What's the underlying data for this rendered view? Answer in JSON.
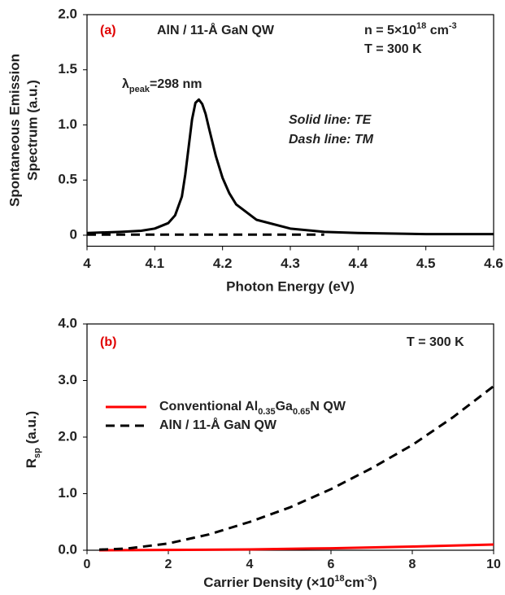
{
  "chart_data": [
    {
      "type": "line",
      "panel_label": "(a)",
      "title": "AlN / 11-Å GaN QW",
      "annotations": {
        "density": [
          "n = 5×10",
          "18",
          " cm",
          "-3"
        ],
        "temperature": "T = 300 K",
        "peak": [
          "λ",
          "peak",
          "=298 nm"
        ],
        "te_note": "Solid line: TE",
        "tm_note": "Dash line: TM"
      },
      "ylabel": [
        "Spontaneous Emission",
        "Spectrum (a.u.)"
      ],
      "xlabel": "Photon Energy (eV)",
      "xlim": [
        4,
        4.6
      ],
      "xticks": [
        4,
        4.1,
        4.2,
        4.3,
        4.4,
        4.5,
        4.6
      ],
      "ylim": [
        -0.1,
        2
      ],
      "yticks": [
        0,
        0.5,
        {
          "value": 1,
          "label": "1.0"
        },
        1.5,
        {
          "value": 2,
          "label": "2.0"
        }
      ],
      "series": [
        {
          "color": "#000000",
          "style": "solid",
          "x": [
            4.0,
            4.05,
            4.08,
            4.1,
            4.12,
            4.13,
            4.14,
            4.145,
            4.15,
            4.155,
            4.16,
            4.165,
            4.17,
            4.175,
            4.18,
            4.19,
            4.2,
            4.21,
            4.22,
            4.25,
            4.3,
            4.35,
            4.4,
            4.5,
            4.6
          ],
          "values": [
            0.02,
            0.03,
            0.04,
            0.06,
            0.11,
            0.18,
            0.35,
            0.55,
            0.8,
            1.05,
            1.2,
            1.23,
            1.19,
            1.1,
            0.97,
            0.72,
            0.52,
            0.38,
            0.28,
            0.14,
            0.06,
            0.03,
            0.02,
            0.01,
            0.01
          ]
        },
        {
          "color": "#000000",
          "style": "dashed",
          "x": [
            4.0,
            4.1,
            4.2,
            4.3,
            4.35
          ],
          "values": [
            0.005,
            0.005,
            0.005,
            0.005,
            0.005
          ]
        }
      ]
    },
    {
      "type": "line",
      "panel_label": "(b)",
      "annotations": {
        "temperature": "T = 300 K"
      },
      "ylabel": [
        "R",
        "sp",
        " (a.u.)"
      ],
      "xlabel": [
        "Carrier Density (×10",
        "18",
        "cm",
        "-3",
        ")"
      ],
      "xlim": [
        0,
        10
      ],
      "xticks": [
        0,
        2,
        4,
        6,
        8,
        10
      ],
      "ylim": [
        0,
        4
      ],
      "yticks": [
        {
          "value": 0,
          "label": "0.0"
        },
        {
          "value": 1,
          "label": "1.0"
        },
        {
          "value": 2,
          "label": "2.0"
        },
        {
          "value": 3,
          "label": "3.0"
        },
        {
          "value": 4,
          "label": "4.0"
        }
      ],
      "legend": true,
      "series": [
        {
          "name": [
            "Conventional Al",
            "0.35",
            "Ga",
            "0.65",
            "N QW"
          ],
          "color": "#ff0000",
          "style": "solid",
          "x": [
            0.3,
            2,
            4,
            6,
            8,
            10
          ],
          "values": [
            0,
            0.005,
            0.015,
            0.035,
            0.065,
            0.1
          ]
        },
        {
          "name": "AlN / 11-Å GaN QW",
          "color": "#000000",
          "style": "dashed",
          "x": [
            0.3,
            1,
            2,
            3,
            4,
            5,
            6,
            7,
            8,
            9,
            10
          ],
          "values": [
            0.01,
            0.03,
            0.12,
            0.28,
            0.5,
            0.76,
            1.08,
            1.45,
            1.86,
            2.35,
            2.9
          ]
        }
      ]
    }
  ]
}
